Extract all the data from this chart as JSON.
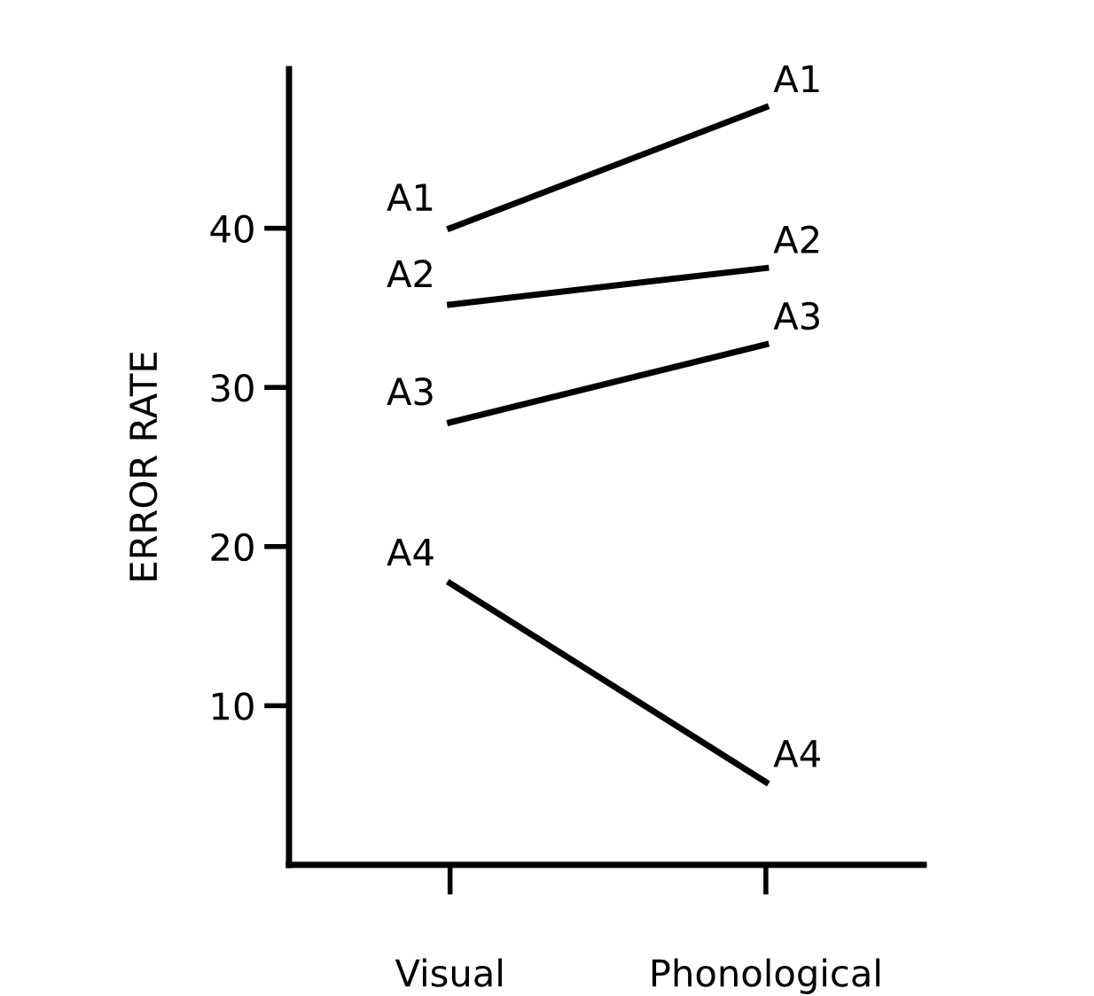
{
  "chart_data": {
    "type": "line",
    "ylabel": "ERROR RATE",
    "categories": [
      "Visual",
      "Phonological"
    ],
    "series": [
      {
        "name": "A1",
        "color": "#000000",
        "values": [
          40,
          47.6
        ]
      },
      {
        "name": "A2",
        "color": "#000000",
        "values": [
          35.2,
          37.5
        ]
      },
      {
        "name": "A3",
        "color": "#000000",
        "values": [
          27.8,
          32.7
        ]
      },
      {
        "name": "A4",
        "color": "#000000",
        "values": [
          17.7,
          5.2
        ]
      }
    ],
    "ylim": [
      0,
      50
    ],
    "yticks": [
      10,
      20,
      30,
      40
    ],
    "grid": false,
    "legend": false,
    "marker": "none",
    "line_style": "solid"
  }
}
